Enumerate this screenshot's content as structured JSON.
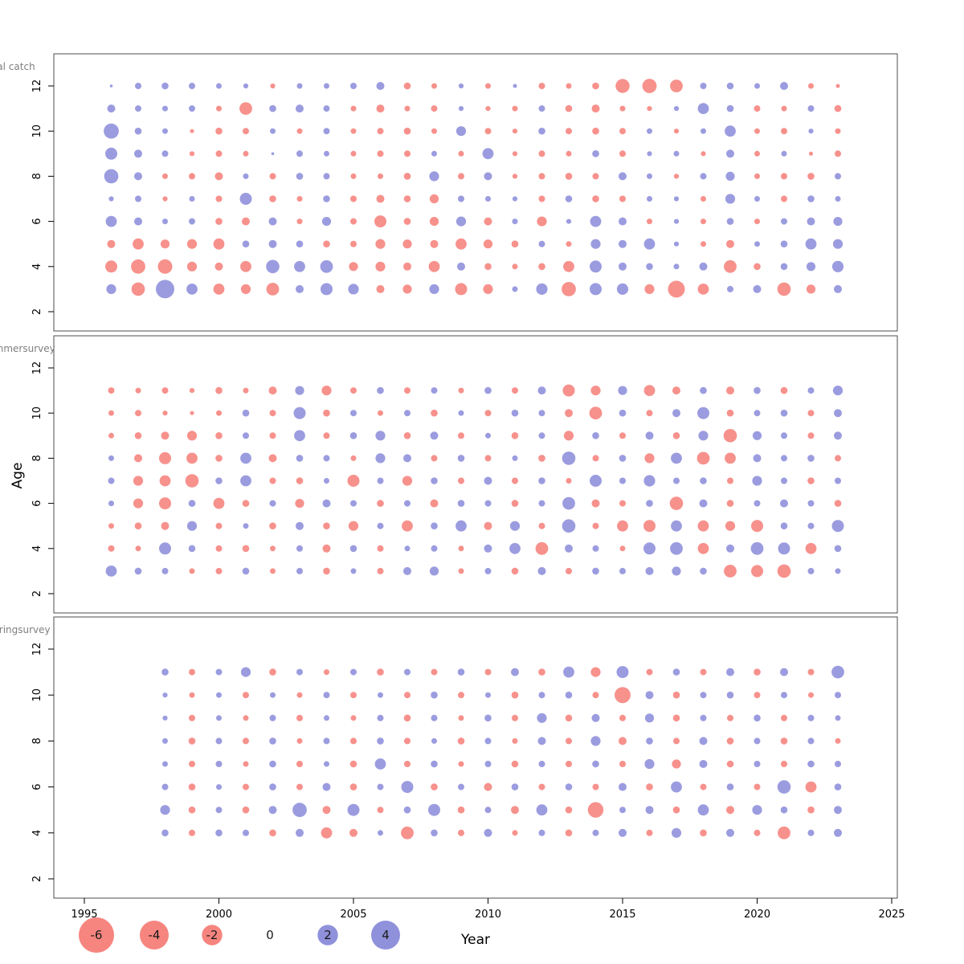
{
  "figure": {
    "ylabel": "Age",
    "xlabel": "Year",
    "colors": {
      "negative": "#f4675f",
      "positive": "#7476d2"
    },
    "panel_border": "#4d4d4d",
    "title_color": "#7f7f7f",
    "x_ticks": [
      1995,
      2000,
      2005,
      2010,
      2015,
      2020,
      2025
    ],
    "y_ticks": [
      2,
      4,
      6,
      8,
      10,
      12
    ],
    "legend": {
      "values": [
        -6,
        -4,
        -2,
        0,
        2,
        4
      ]
    }
  },
  "chart_data": [
    {
      "type": "scatter",
      "subtype": "bubble-residuals",
      "title": "Residual catch",
      "xlabel": "Year",
      "ylabel": "Age",
      "xlim": [
        1994,
        2026
      ],
      "ylim": [
        1.5,
        13.2
      ],
      "years": [
        1996,
        1997,
        1998,
        1999,
        2000,
        2001,
        2002,
        2003,
        2004,
        2005,
        2006,
        2007,
        2008,
        2009,
        2010,
        2011,
        2012,
        2013,
        2014,
        2015,
        2016,
        2017,
        2018,
        2019,
        2020,
        2021,
        2022,
        2023
      ],
      "ages": [
        3,
        4,
        5,
        6,
        7,
        8,
        9,
        10,
        11,
        12
      ],
      "values": [
        [
          1.2,
          -2.2,
          4.2,
          1.5,
          -1.5,
          -1.2,
          -2.0,
          0.8,
          1.8,
          1.4,
          -0.8,
          -1.0,
          1.2,
          -1.8,
          -1.2,
          0.4,
          1.6,
          -2.5,
          1.8,
          1.6,
          -1.2,
          -3.5,
          -1.5,
          0.5,
          0.8,
          -2.2,
          -1.0,
          0.8
        ],
        [
          -1.8,
          -2.5,
          -2.6,
          -1.2,
          -0.8,
          -1.5,
          2.2,
          1.5,
          2.0,
          -1.0,
          -1.2,
          -0.8,
          -1.5,
          0.8,
          -0.6,
          -0.4,
          -0.6,
          -1.5,
          1.8,
          0.8,
          0.6,
          0.4,
          0.8,
          -2.0,
          -0.6,
          0.6,
          1.0,
          1.6
        ],
        [
          -0.8,
          -1.5,
          -1.0,
          -1.2,
          -1.5,
          0.6,
          0.8,
          0.6,
          -0.6,
          -0.5,
          -1.2,
          -1.0,
          -0.8,
          -1.5,
          -1.0,
          -0.6,
          0.5,
          -0.4,
          1.2,
          0.8,
          1.5,
          0.3,
          -0.4,
          -0.8,
          0.4,
          0.6,
          1.5,
          1.2
        ],
        [
          1.5,
          0.8,
          0.4,
          0.5,
          -0.6,
          -0.8,
          0.8,
          -0.4,
          1.0,
          -0.5,
          -1.8,
          -0.6,
          -1.0,
          1.2,
          -0.8,
          0.4,
          -1.2,
          0.3,
          1.5,
          0.8,
          -0.4,
          0.3,
          -0.4,
          0.6,
          -0.4,
          0.5,
          0.8,
          1.0
        ],
        [
          0.3,
          0.5,
          -0.3,
          0.4,
          -0.5,
          1.8,
          -0.6,
          -0.4,
          0.6,
          -0.5,
          -0.8,
          -0.6,
          -1.0,
          0.5,
          0.4,
          0.3,
          -0.5,
          0.6,
          -0.6,
          -0.5,
          0.4,
          0.3,
          -0.4,
          1.2,
          0.4,
          -0.5,
          0.6,
          0.4
        ],
        [
          2.5,
          0.8,
          -0.4,
          -0.5,
          -0.8,
          0.4,
          -0.5,
          0.6,
          0.5,
          -0.4,
          -0.4,
          -0.6,
          1.2,
          -0.5,
          0.8,
          -0.3,
          -0.5,
          -0.6,
          -0.5,
          0.8,
          0.4,
          -0.3,
          0.5,
          1.0,
          -0.4,
          -0.5,
          -0.6,
          0.5
        ],
        [
          1.8,
          0.8,
          0.5,
          -0.3,
          -0.5,
          -0.4,
          0.1,
          0.5,
          0.4,
          -0.4,
          -0.5,
          -0.5,
          0.4,
          -0.4,
          1.5,
          -0.3,
          -0.5,
          -0.4,
          0.6,
          -0.5,
          0.3,
          0.4,
          -0.3,
          0.8,
          -0.4,
          0.4,
          -0.2,
          -0.5
        ],
        [
          2.8,
          0.6,
          0.4,
          -0.2,
          -0.6,
          -0.5,
          0.4,
          -0.4,
          0.5,
          -0.4,
          -0.5,
          -0.6,
          -0.4,
          1.2,
          -0.5,
          -0.3,
          0.6,
          -0.5,
          -0.6,
          -0.5,
          0.4,
          -0.3,
          0.4,
          1.5,
          -0.4,
          -0.5,
          0.3,
          -0.4
        ],
        [
          0.8,
          0.5,
          0.4,
          0.5,
          -0.4,
          -2.0,
          0.6,
          0.8,
          0.5,
          -0.4,
          -0.8,
          -0.4,
          -0.5,
          0.3,
          -0.3,
          -0.4,
          0.5,
          -0.6,
          -0.8,
          -0.4,
          -0.3,
          0.3,
          1.5,
          0.6,
          -0.5,
          -0.4,
          0.5,
          -0.6
        ],
        [
          0.1,
          0.5,
          0.6,
          0.5,
          0.4,
          0.3,
          -0.3,
          0.4,
          0.4,
          0.5,
          0.8,
          -0.6,
          -0.4,
          0.3,
          -0.4,
          0.2,
          -0.5,
          -0.4,
          -0.6,
          -2.4,
          -2.5,
          -2.0,
          0.5,
          0.6,
          0.4,
          0.8,
          -0.4,
          -0.2
        ]
      ]
    },
    {
      "type": "scatter",
      "subtype": "bubble-residuals",
      "title": "FaroeseSummersurvey",
      "xlabel": "Year",
      "ylabel": "Age",
      "xlim": [
        1994,
        2026
      ],
      "ylim": [
        1.5,
        13.2
      ],
      "years": [
        1996,
        1997,
        1998,
        1999,
        2000,
        2001,
        2002,
        2003,
        2004,
        2005,
        2006,
        2007,
        2008,
        2009,
        2010,
        2011,
        2012,
        2013,
        2014,
        2015,
        2016,
        2017,
        2018,
        2019,
        2020,
        2021,
        2022,
        2023
      ],
      "ages": [
        3,
        4,
        5,
        6,
        7,
        8,
        9,
        10,
        11
      ],
      "values": [
        [
          1.5,
          0.6,
          0.5,
          -0.4,
          -0.5,
          0.6,
          -0.4,
          0.5,
          -0.6,
          0.4,
          -0.5,
          0.8,
          1.0,
          -0.4,
          0.5,
          -0.6,
          0.8,
          -0.5,
          0.6,
          0.5,
          0.8,
          1.0,
          0.6,
          -2.0,
          -1.8,
          -2.2,
          0.5,
          0.4
        ],
        [
          -0.5,
          -0.4,
          1.8,
          0.6,
          -0.5,
          -0.6,
          -0.4,
          0.5,
          -0.8,
          0.6,
          -0.5,
          0.4,
          0.5,
          -0.4,
          0.8,
          1.5,
          -2.0,
          0.8,
          0.5,
          -0.4,
          1.8,
          2.0,
          -1.5,
          0.8,
          2.0,
          1.8,
          -1.5,
          0.6
        ],
        [
          -0.4,
          -0.6,
          -0.8,
          1.2,
          -0.5,
          0.4,
          -0.6,
          0.8,
          -0.6,
          -1.2,
          0.5,
          -1.5,
          0.6,
          1.5,
          -0.8,
          1.2,
          -0.5,
          2.2,
          -0.5,
          -1.5,
          -1.8,
          1.5,
          -1.5,
          -1.2,
          -1.8,
          0.6,
          0.5,
          1.8
        ],
        [
          0.4,
          -1.2,
          -1.8,
          0.6,
          -1.5,
          -0.6,
          0.5,
          -1.0,
          0.8,
          0.5,
          -0.6,
          0.5,
          -0.8,
          0.6,
          0.5,
          -0.6,
          0.5,
          2.0,
          -0.8,
          -0.5,
          0.6,
          -2.2,
          0.8,
          -0.6,
          0.5,
          0.8,
          0.5,
          -0.6
        ],
        [
          0.5,
          -1.2,
          -1.5,
          -2.2,
          0.6,
          1.5,
          -0.5,
          -0.6,
          0.4,
          -1.8,
          0.5,
          -1.2,
          0.6,
          -0.5,
          0.8,
          -0.5,
          0.6,
          -0.4,
          1.8,
          0.5,
          1.6,
          0.5,
          0.6,
          -0.5,
          1.2,
          0.5,
          -0.6,
          0.5
        ],
        [
          0.4,
          -0.8,
          -1.8,
          -1.5,
          -0.6,
          1.5,
          -0.8,
          0.6,
          0.5,
          -0.4,
          1.2,
          0.8,
          -0.5,
          0.6,
          -0.5,
          0.4,
          -0.6,
          2.2,
          -0.5,
          0.6,
          -1.2,
          1.5,
          -2.0,
          -1.5,
          0.8,
          0.5,
          0.6,
          -0.5
        ],
        [
          -0.4,
          -0.6,
          -0.8,
          -1.2,
          -0.6,
          0.5,
          -0.5,
          1.5,
          -0.5,
          0.6,
          1.2,
          -0.6,
          0.8,
          -0.5,
          0.4,
          -0.6,
          0.5,
          -1.2,
          0.6,
          -0.5,
          0.8,
          -0.6,
          1.2,
          -2.2,
          1.0,
          0.5,
          -0.5,
          0.8
        ],
        [
          -0.4,
          -0.5,
          -0.3,
          -0.2,
          -0.4,
          0.6,
          -0.5,
          1.8,
          -0.6,
          0.5,
          -0.4,
          0.5,
          -0.6,
          0.4,
          -0.5,
          0.6,
          0.5,
          -0.8,
          -2.0,
          0.6,
          -0.5,
          0.8,
          1.8,
          -0.6,
          0.5,
          0.6,
          -0.5,
          0.8
        ],
        [
          -0.5,
          -0.4,
          -0.5,
          -0.3,
          -0.6,
          -0.4,
          -0.8,
          1.0,
          -1.2,
          -0.5,
          0.6,
          -0.5,
          0.5,
          -0.4,
          0.6,
          -0.5,
          0.8,
          -1.8,
          -1.2,
          1.0,
          -1.5,
          -0.8,
          0.6,
          -0.8,
          0.6,
          -0.6,
          0.5,
          1.2
        ]
      ]
    },
    {
      "type": "scatter",
      "subtype": "bubble-residuals",
      "title": "FaroeseSpringsurvey",
      "xlabel": "Year",
      "ylabel": "Age",
      "xlim": [
        1994,
        2026
      ],
      "ylim": [
        1.5,
        13.2
      ],
      "years": [
        1998,
        1999,
        2000,
        2001,
        2002,
        2003,
        2004,
        2005,
        2006,
        2007,
        2008,
        2009,
        2010,
        2011,
        2012,
        2013,
        2014,
        2015,
        2016,
        2017,
        2018,
        2019,
        2020,
        2021,
        2022,
        2023
      ],
      "ages": [
        4,
        5,
        6,
        7,
        8,
        9,
        10,
        11
      ],
      "values": [
        [
          0.6,
          -0.5,
          0.6,
          0.5,
          -0.6,
          0.8,
          -1.5,
          -0.8,
          0.4,
          -2.0,
          0.6,
          -0.5,
          0.8,
          -0.4,
          0.5,
          -0.6,
          0.5,
          0.8,
          -0.5,
          1.2,
          -0.6,
          0.8,
          -0.5,
          -2.0,
          0.5,
          0.8
        ],
        [
          1.2,
          -0.6,
          0.5,
          -0.6,
          0.8,
          2.5,
          -0.8,
          1.8,
          -0.5,
          0.6,
          1.8,
          -0.6,
          0.5,
          -0.8,
          1.5,
          -0.6,
          -3.0,
          0.5,
          0.8,
          -0.6,
          1.5,
          -0.8,
          1.2,
          0.6,
          -0.6,
          0.8
        ],
        [
          0.5,
          -0.6,
          0.4,
          -0.5,
          0.6,
          -0.5,
          0.8,
          -0.6,
          0.5,
          1.8,
          -0.6,
          0.5,
          -0.8,
          0.6,
          -0.5,
          0.6,
          -0.5,
          0.8,
          -0.6,
          1.5,
          -0.5,
          0.6,
          -0.5,
          2.2,
          -1.5,
          0.6
        ],
        [
          0.4,
          -0.5,
          0.5,
          -0.4,
          0.6,
          -0.5,
          0.4,
          -0.6,
          1.5,
          -0.5,
          0.6,
          -0.4,
          0.5,
          -0.6,
          0.5,
          -0.5,
          0.6,
          -0.5,
          1.2,
          -1.0,
          0.8,
          -0.6,
          0.5,
          -0.5,
          0.6,
          0.5
        ],
        [
          0.4,
          -0.6,
          0.5,
          -0.5,
          0.6,
          -0.4,
          0.5,
          -0.5,
          0.6,
          -0.5,
          0.4,
          -0.6,
          0.5,
          -0.4,
          0.8,
          -0.5,
          1.2,
          -0.8,
          0.6,
          -0.5,
          0.8,
          -0.6,
          0.5,
          -0.6,
          0.5,
          -0.4
        ],
        [
          0.3,
          -0.5,
          0.4,
          -0.4,
          0.5,
          -0.5,
          0.4,
          -0.4,
          0.5,
          -0.6,
          0.5,
          -0.4,
          0.6,
          -0.5,
          1.2,
          -0.6,
          0.8,
          -0.5,
          1.0,
          -0.6,
          0.5,
          -0.5,
          0.6,
          -0.5,
          0.5,
          0.4
        ],
        [
          0.3,
          -0.4,
          0.4,
          -0.5,
          0.4,
          -0.4,
          0.5,
          -0.5,
          0.4,
          -0.5,
          0.6,
          -0.5,
          0.4,
          -0.6,
          0.5,
          0.6,
          -0.5,
          -3.2,
          0.8,
          -0.6,
          0.5,
          0.6,
          -0.5,
          0.5,
          -0.4,
          0.5
        ],
        [
          0.6,
          -0.5,
          0.5,
          1.2,
          -0.6,
          0.5,
          -0.4,
          0.5,
          -0.6,
          0.5,
          -0.5,
          0.6,
          -0.5,
          0.8,
          -0.6,
          1.5,
          -1.2,
          1.8,
          -0.5,
          0.6,
          -0.5,
          0.8,
          -0.6,
          0.8,
          -0.5,
          2.0
        ]
      ]
    }
  ]
}
